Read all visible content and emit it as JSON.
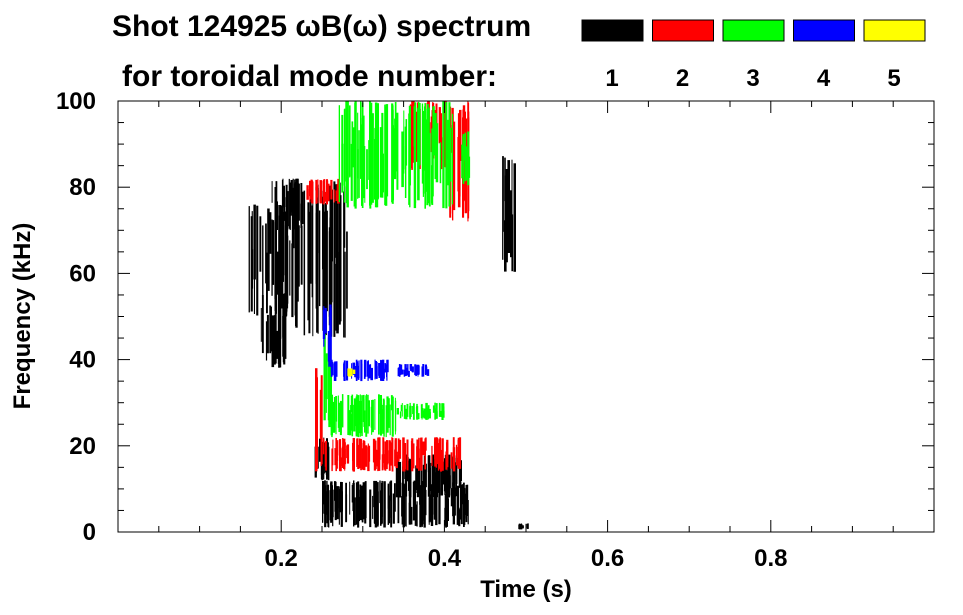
{
  "chart_data": {
    "type": "heatmap",
    "title_line1": "Shot 124925 ωB(ω) spectrum",
    "title_line2": "for toroidal mode number:",
    "xlabel": "Time (s)",
    "ylabel": "Frequency (kHz)",
    "xlim": [
      0.0,
      1.0
    ],
    "ylim": [
      0,
      100
    ],
    "x_ticks": [
      "0.2",
      "0.4",
      "0.6",
      "0.8"
    ],
    "x_tick_values": [
      0.2,
      0.4,
      0.6,
      0.8
    ],
    "y_ticks": [
      "0",
      "20",
      "40",
      "60",
      "80",
      "100"
    ],
    "y_tick_values": [
      0,
      20,
      40,
      60,
      80,
      100
    ],
    "legend_placement": "top-right",
    "legend": [
      {
        "mode": "1",
        "color": "#000000"
      },
      {
        "mode": "2",
        "color": "#ff0000"
      },
      {
        "mode": "3",
        "color": "#00ff00"
      },
      {
        "mode": "4",
        "color": "#0000ff"
      },
      {
        "mode": "5",
        "color": "#ffff00"
      }
    ],
    "features": [
      {
        "mode": "1",
        "t0": 0.16,
        "t1": 0.21,
        "f0": 50,
        "f1": 76
      },
      {
        "mode": "1",
        "t0": 0.185,
        "t1": 0.225,
        "f0": 70,
        "f1": 82
      },
      {
        "mode": "1",
        "t0": 0.175,
        "t1": 0.205,
        "f0": 38,
        "f1": 56
      },
      {
        "mode": "1",
        "t0": 0.21,
        "t1": 0.28,
        "f0": 45,
        "f1": 82
      },
      {
        "mode": "1",
        "t0": 0.24,
        "t1": 0.26,
        "f0": 12,
        "f1": 22
      },
      {
        "mode": "1",
        "t0": 0.25,
        "t1": 0.43,
        "f0": 1,
        "f1": 12
      },
      {
        "mode": "1",
        "t0": 0.34,
        "t1": 0.42,
        "f0": 8,
        "f1": 18
      },
      {
        "mode": "1",
        "t0": 0.47,
        "t1": 0.485,
        "f0": 60,
        "f1": 88
      },
      {
        "mode": "1",
        "t0": 0.49,
        "t1": 0.505,
        "f0": 0.5,
        "f1": 2
      },
      {
        "mode": "2",
        "t0": 0.24,
        "t1": 0.25,
        "f0": 14,
        "f1": 40
      },
      {
        "mode": "2",
        "t0": 0.25,
        "t1": 0.42,
        "f0": 14,
        "f1": 22
      },
      {
        "mode": "2",
        "t0": 0.23,
        "t1": 0.27,
        "f0": 76,
        "f1": 82
      },
      {
        "mode": "2",
        "t0": 0.355,
        "t1": 0.41,
        "f0": 84,
        "f1": 100
      },
      {
        "mode": "2",
        "t0": 0.405,
        "t1": 0.43,
        "f0": 72,
        "f1": 100
      },
      {
        "mode": "3",
        "t0": 0.25,
        "t1": 0.26,
        "f0": 24,
        "f1": 46
      },
      {
        "mode": "3",
        "t0": 0.26,
        "t1": 0.34,
        "f0": 22,
        "f1": 32
      },
      {
        "mode": "3",
        "t0": 0.34,
        "t1": 0.4,
        "f0": 26,
        "f1": 30
      },
      {
        "mode": "3",
        "t0": 0.27,
        "t1": 0.41,
        "f0": 75,
        "f1": 100
      },
      {
        "mode": "3",
        "t0": 0.42,
        "t1": 0.43,
        "f0": 80,
        "f1": 93
      },
      {
        "mode": "4",
        "t0": 0.25,
        "t1": 0.26,
        "f0": 38,
        "f1": 53
      },
      {
        "mode": "4",
        "t0": 0.26,
        "t1": 0.33,
        "f0": 35,
        "f1": 40
      },
      {
        "mode": "4",
        "t0": 0.34,
        "t1": 0.38,
        "f0": 36,
        "f1": 39
      },
      {
        "mode": "5",
        "t0": 0.28,
        "t1": 0.29,
        "f0": 36,
        "f1": 38
      }
    ]
  }
}
